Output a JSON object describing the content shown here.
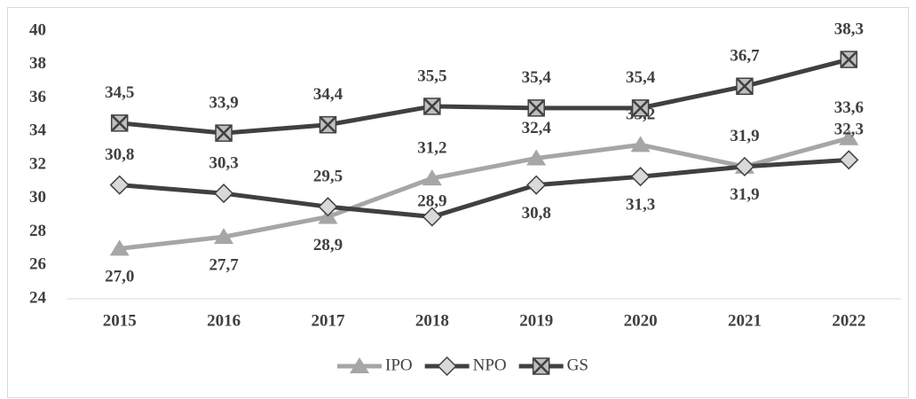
{
  "chart_data": {
    "type": "line",
    "categories": [
      "2015",
      "2016",
      "2017",
      "2018",
      "2019",
      "2020",
      "2021",
      "2022"
    ],
    "series": [
      {
        "name": "IPO",
        "color": "#a6a6a6",
        "marker": "triangle",
        "values": [
          27.0,
          27.7,
          28.9,
          31.2,
          32.4,
          33.2,
          31.9,
          33.6
        ],
        "value_labels": [
          "27,0",
          "27,7",
          "28,9",
          "31,2",
          "32,4",
          "33,2",
          "31,9",
          "33,6"
        ]
      },
      {
        "name": "NPO",
        "color": "#404040",
        "marker": "diamond",
        "values": [
          30.8,
          30.3,
          29.5,
          28.9,
          30.8,
          31.3,
          31.9,
          32.3
        ],
        "value_labels": [
          "30,8",
          "30,3",
          "29,5",
          "28,9",
          "30,8",
          "31,3",
          "31,9",
          "32,3"
        ]
      },
      {
        "name": "GS",
        "color": "#404040",
        "marker": "boxed-x",
        "values": [
          34.5,
          33.9,
          34.4,
          35.5,
          35.4,
          35.4,
          36.7,
          38.3
        ],
        "value_labels": [
          "34,5",
          "33,9",
          "34,4",
          "35,5",
          "35,4",
          "35,4",
          "36,7",
          "38,3"
        ]
      }
    ],
    "ylim": [
      24,
      40
    ],
    "yticks": [
      24,
      26,
      28,
      30,
      32,
      34,
      36,
      38,
      40
    ],
    "grid": false,
    "legend": "bottom"
  }
}
